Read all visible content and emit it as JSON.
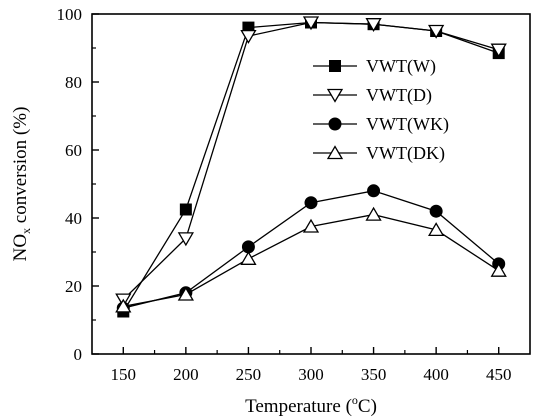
{
  "chart_data": {
    "type": "line",
    "x": [
      150,
      200,
      250,
      300,
      350,
      400,
      450
    ],
    "xlim": [
      125,
      475
    ],
    "ylim": [
      0,
      100
    ],
    "xticks": [
      "150",
      "200",
      "250",
      "300",
      "350",
      "400",
      "450"
    ],
    "yticks": [
      "0",
      "20",
      "40",
      "60",
      "80",
      "100"
    ],
    "xlabel": {
      "prefix": "Temperature (",
      "sup": "o",
      "suffix": "C)"
    },
    "ylabel": {
      "prefix": "NO",
      "sub": "x",
      "suffix": " conversion (%)"
    },
    "legend_position": "top-right",
    "grid": false,
    "series": [
      {
        "name": "VWT(W)",
        "marker": "square-filled",
        "values": [
          12.5,
          42.5,
          96.0,
          97.5,
          97.0,
          95.0,
          88.5
        ]
      },
      {
        "name": "VWT(D)",
        "marker": "triangle-down-open",
        "values": [
          16.0,
          34.0,
          93.5,
          97.5,
          97.0,
          95.0,
          89.5
        ]
      },
      {
        "name": "VWT(WK)",
        "marker": "circle-filled",
        "values": [
          13.5,
          18.0,
          31.5,
          44.5,
          48.0,
          42.0,
          26.5
        ]
      },
      {
        "name": "VWT(DK)",
        "marker": "triangle-up-open",
        "values": [
          14.0,
          17.5,
          28.0,
          37.5,
          41.0,
          36.5,
          24.5
        ]
      }
    ]
  }
}
